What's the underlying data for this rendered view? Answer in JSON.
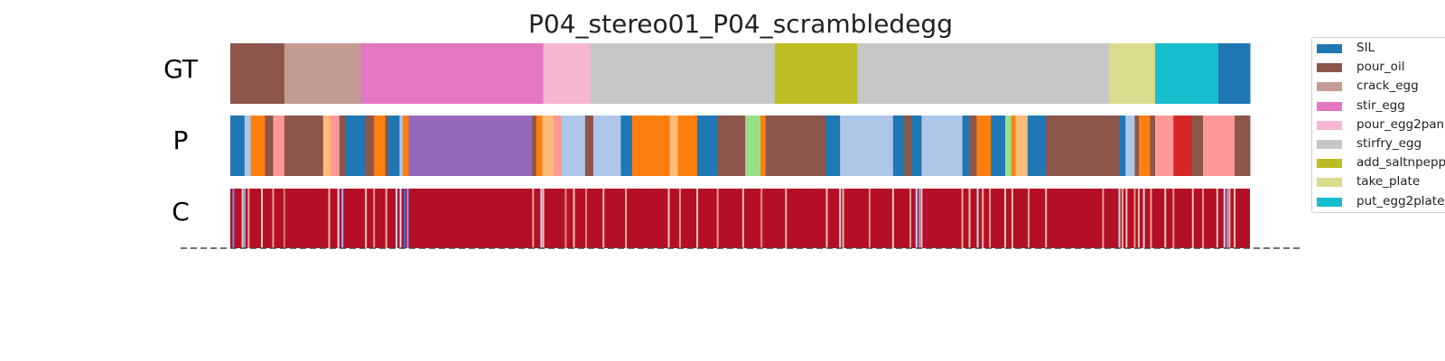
{
  "chart_data": {
    "type": "segmentation-timeline",
    "title": "P04_stereo01_P04_scrambledegg",
    "rows": [
      "GT",
      "P",
      "C"
    ],
    "x_range": [
      0,
      1000
    ],
    "legend": {
      "placement": "right",
      "entries": [
        {
          "name": "SIL",
          "color": "#1f77b4"
        },
        {
          "name": "pour_oil",
          "color": "#8c564b"
        },
        {
          "name": "crack_egg",
          "color": "#c49c94"
        },
        {
          "name": "stir_egg",
          "color": "#e377c2"
        },
        {
          "name": "pour_egg2pan",
          "color": "#f7b6d2"
        },
        {
          "name": "stirfry_egg",
          "color": "#c7c7c7"
        },
        {
          "name": "add_saltnpepper",
          "color": "#bcbd22"
        },
        {
          "name": "take_plate",
          "color": "#dbdb8d"
        },
        {
          "name": "put_egg2plate",
          "color": "#17becf"
        }
      ]
    },
    "gt_segments": [
      {
        "start": 0,
        "end": 53,
        "color": "#8c564b"
      },
      {
        "start": 53,
        "end": 128,
        "color": "#c49c94"
      },
      {
        "start": 128,
        "end": 307,
        "color": "#e377c2"
      },
      {
        "start": 307,
        "end": 353,
        "color": "#f7b6d2"
      },
      {
        "start": 353,
        "end": 534,
        "color": "#c7c7c7"
      },
      {
        "start": 534,
        "end": 615,
        "color": "#bcbd22"
      },
      {
        "start": 615,
        "end": 862,
        "color": "#c7c7c7"
      },
      {
        "start": 862,
        "end": 907,
        "color": "#dbdb8d"
      },
      {
        "start": 907,
        "end": 969,
        "color": "#17becf"
      },
      {
        "start": 969,
        "end": 1000,
        "color": "#1f77b4"
      }
    ],
    "p_segments": [
      {
        "start": 0,
        "end": 14,
        "color": "#1f77b4"
      },
      {
        "start": 14,
        "end": 20,
        "color": "#aec7e8"
      },
      {
        "start": 20,
        "end": 34,
        "color": "#ff7f0e"
      },
      {
        "start": 34,
        "end": 42,
        "color": "#8c564b"
      },
      {
        "start": 42,
        "end": 53,
        "color": "#ff9896"
      },
      {
        "start": 53,
        "end": 91,
        "color": "#8c564b"
      },
      {
        "start": 91,
        "end": 98,
        "color": "#ffbb78"
      },
      {
        "start": 98,
        "end": 107,
        "color": "#ff9896"
      },
      {
        "start": 107,
        "end": 113,
        "color": "#8c564b"
      },
      {
        "start": 113,
        "end": 132,
        "color": "#1f77b4"
      },
      {
        "start": 132,
        "end": 141,
        "color": "#8c564b"
      },
      {
        "start": 141,
        "end": 152,
        "color": "#ff7f0e"
      },
      {
        "start": 152,
        "end": 155,
        "color": "#8c564b"
      },
      {
        "start": 155,
        "end": 166,
        "color": "#1f77b4"
      },
      {
        "start": 166,
        "end": 169,
        "color": "#aec7e8"
      },
      {
        "start": 169,
        "end": 175,
        "color": "#ff7f0e"
      },
      {
        "start": 175,
        "end": 296,
        "color": "#9467bd"
      },
      {
        "start": 296,
        "end": 300,
        "color": "#8c564b"
      },
      {
        "start": 300,
        "end": 306,
        "color": "#ff7f0e"
      },
      {
        "start": 306,
        "end": 317,
        "color": "#ffbb78"
      },
      {
        "start": 317,
        "end": 325,
        "color": "#ff9896"
      },
      {
        "start": 325,
        "end": 348,
        "color": "#aec7e8"
      },
      {
        "start": 348,
        "end": 356,
        "color": "#8c564b"
      },
      {
        "start": 356,
        "end": 383,
        "color": "#aec7e8"
      },
      {
        "start": 383,
        "end": 394,
        "color": "#1f77b4"
      },
      {
        "start": 394,
        "end": 431,
        "color": "#ff7f0e"
      },
      {
        "start": 431,
        "end": 439,
        "color": "#ffbb78"
      },
      {
        "start": 439,
        "end": 458,
        "color": "#ff7f0e"
      },
      {
        "start": 458,
        "end": 478,
        "color": "#1f77b4"
      },
      {
        "start": 478,
        "end": 505,
        "color": "#8c564b"
      },
      {
        "start": 505,
        "end": 520,
        "color": "#98df8a"
      },
      {
        "start": 520,
        "end": 525,
        "color": "#ff7f0e"
      },
      {
        "start": 525,
        "end": 584,
        "color": "#8c564b"
      },
      {
        "start": 584,
        "end": 598,
        "color": "#1f77b4"
      },
      {
        "start": 598,
        "end": 650,
        "color": "#aec7e8"
      },
      {
        "start": 650,
        "end": 661,
        "color": "#1f77b4"
      },
      {
        "start": 661,
        "end": 668,
        "color": "#8c564b"
      },
      {
        "start": 668,
        "end": 678,
        "color": "#1f77b4"
      },
      {
        "start": 678,
        "end": 718,
        "color": "#aec7e8"
      },
      {
        "start": 718,
        "end": 725,
        "color": "#1f77b4"
      },
      {
        "start": 725,
        "end": 732,
        "color": "#8c564b"
      },
      {
        "start": 732,
        "end": 746,
        "color": "#ff7f0e"
      },
      {
        "start": 746,
        "end": 760,
        "color": "#1f77b4"
      },
      {
        "start": 760,
        "end": 766,
        "color": "#98df8a"
      },
      {
        "start": 766,
        "end": 770,
        "color": "#ff7f0e"
      },
      {
        "start": 770,
        "end": 782,
        "color": "#ffbb78"
      },
      {
        "start": 782,
        "end": 800,
        "color": "#1f77b4"
      },
      {
        "start": 800,
        "end": 872,
        "color": "#8c564b"
      },
      {
        "start": 872,
        "end": 878,
        "color": "#1f77b4"
      },
      {
        "start": 878,
        "end": 887,
        "color": "#aec7e8"
      },
      {
        "start": 887,
        "end": 891,
        "color": "#8c564b"
      },
      {
        "start": 891,
        "end": 902,
        "color": "#ff7f0e"
      },
      {
        "start": 902,
        "end": 907,
        "color": "#8c564b"
      },
      {
        "start": 907,
        "end": 925,
        "color": "#ff9896"
      },
      {
        "start": 925,
        "end": 943,
        "color": "#d62728"
      },
      {
        "start": 943,
        "end": 954,
        "color": "#8c564b"
      },
      {
        "start": 954,
        "end": 985,
        "color": "#ff9896"
      },
      {
        "start": 985,
        "end": 1000,
        "color": "#8c564b"
      }
    ],
    "c_background": "#b40f27",
    "c_stripes": [
      {
        "pos": 3,
        "color": "#6f8fe8"
      },
      {
        "pos": 12,
        "color": "#f3c6b4"
      },
      {
        "pos": 14,
        "color": "#8ea9f4"
      },
      {
        "pos": 18,
        "color": "#e8a88e"
      },
      {
        "pos": 31,
        "color": "#f7d4c3"
      },
      {
        "pos": 42,
        "color": "#e9a286"
      },
      {
        "pos": 53,
        "color": "#dc7a62"
      },
      {
        "pos": 97,
        "color": "#f1bda7"
      },
      {
        "pos": 106,
        "color": "#d9d8ea"
      },
      {
        "pos": 110,
        "color": "#9db7f5"
      },
      {
        "pos": 133,
        "color": "#f5cbb8"
      },
      {
        "pos": 141,
        "color": "#e59c81"
      },
      {
        "pos": 153,
        "color": "#edb198"
      },
      {
        "pos": 163,
        "color": "#c9d4f2"
      },
      {
        "pos": 167,
        "color": "#d7dced"
      },
      {
        "pos": 171,
        "color": "#4566d8"
      },
      {
        "pos": 174,
        "color": "#86a3ef"
      },
      {
        "pos": 297,
        "color": "#eaa68d"
      },
      {
        "pos": 305,
        "color": "#c6d4f4"
      },
      {
        "pos": 307,
        "color": "#f0baa3"
      },
      {
        "pos": 329,
        "color": "#e09178"
      },
      {
        "pos": 337,
        "color": "#f4c4af"
      },
      {
        "pos": 349,
        "color": "#de886e"
      },
      {
        "pos": 366,
        "color": "#f3c1ad"
      },
      {
        "pos": 388,
        "color": "#ecae95"
      },
      {
        "pos": 430,
        "color": "#f4c8b5"
      },
      {
        "pos": 441,
        "color": "#e19b81"
      },
      {
        "pos": 458,
        "color": "#f6cdb9"
      },
      {
        "pos": 478,
        "color": "#e89f86"
      },
      {
        "pos": 503,
        "color": "#f2bea9"
      },
      {
        "pos": 521,
        "color": "#e4977c"
      },
      {
        "pos": 545,
        "color": "#f0b6a0"
      },
      {
        "pos": 585,
        "color": "#f4c5b1"
      },
      {
        "pos": 598,
        "color": "#d9d5e7"
      },
      {
        "pos": 601,
        "color": "#f0b79f"
      },
      {
        "pos": 627,
        "color": "#e39a81"
      },
      {
        "pos": 650,
        "color": "#f7d0bf"
      },
      {
        "pos": 667,
        "color": "#e8a58c"
      },
      {
        "pos": 673,
        "color": "#c3d2f6"
      },
      {
        "pos": 676,
        "color": "#7d9ff0"
      },
      {
        "pos": 678,
        "color": "#f2c0aa"
      },
      {
        "pos": 718,
        "color": "#ebab92"
      },
      {
        "pos": 725,
        "color": "#f3c4b0"
      },
      {
        "pos": 733,
        "color": "#d9dae9"
      },
      {
        "pos": 738,
        "color": "#f0b59e"
      },
      {
        "pos": 745,
        "color": "#e59e84"
      },
      {
        "pos": 760,
        "color": "#f6cfbd"
      },
      {
        "pos": 767,
        "color": "#f1bba5"
      },
      {
        "pos": 783,
        "color": "#e9a68c"
      },
      {
        "pos": 800,
        "color": "#f2c1ac"
      },
      {
        "pos": 856,
        "color": "#e7a085"
      },
      {
        "pos": 872,
        "color": "#c9d5f0"
      },
      {
        "pos": 875,
        "color": "#edb098"
      },
      {
        "pos": 879,
        "color": "#f4c9b6"
      },
      {
        "pos": 887,
        "color": "#e39c82"
      },
      {
        "pos": 891,
        "color": "#f0b8a1"
      },
      {
        "pos": 896,
        "color": "#dcd8e6"
      },
      {
        "pos": 903,
        "color": "#eba88f"
      },
      {
        "pos": 917,
        "color": "#f5ccb9"
      },
      {
        "pos": 925,
        "color": "#e29a7f"
      },
      {
        "pos": 944,
        "color": "#f2bfaa"
      },
      {
        "pos": 954,
        "color": "#e49d83"
      },
      {
        "pos": 968,
        "color": "#f3c3ae"
      },
      {
        "pos": 975,
        "color": "#d2d8ee"
      },
      {
        "pos": 978,
        "color": "#8aa6ef"
      },
      {
        "pos": 980,
        "color": "#eeb49c"
      },
      {
        "pos": 985,
        "color": "#f4c8b3"
      }
    ]
  }
}
